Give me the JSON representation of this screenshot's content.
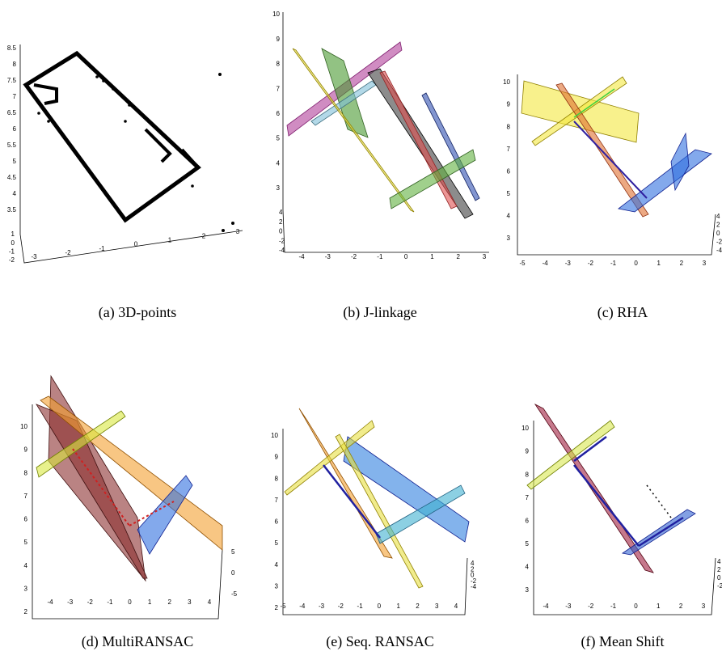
{
  "panels": [
    {
      "caption": "(a) 3D-points",
      "y_ticks": [
        "8.5",
        "8",
        "7.5",
        "7",
        "6.5",
        "6",
        "5.5",
        "5",
        "4.5",
        "4",
        "3.5"
      ],
      "z_ticks": [
        "1",
        "0",
        "-1",
        "-2"
      ],
      "x_ticks": [
        "-3",
        "-2",
        "-1",
        "0",
        "1",
        "2",
        "3"
      ]
    },
    {
      "caption": "(b) J-linkage",
      "y_ticks": [
        "10",
        "9",
        "8",
        "7",
        "6",
        "5",
        "4",
        "3"
      ],
      "z_ticks": [
        "4",
        "2",
        "0",
        "-2",
        "-4"
      ],
      "x_ticks": [
        "-4",
        "-3",
        "-2",
        "-1",
        "0",
        "1",
        "2",
        "3"
      ]
    },
    {
      "caption": "(c) RHA",
      "y_ticks": [
        "10",
        "9",
        "8",
        "7",
        "6",
        "5",
        "4",
        "3"
      ],
      "z_ticks": [
        "4",
        "2",
        "0",
        "-2",
        "-4"
      ],
      "x_ticks": [
        "-5",
        "-4",
        "-3",
        "-2",
        "-1",
        "0",
        "1",
        "2",
        "3"
      ]
    },
    {
      "caption": "(d) MultiRANSAC",
      "y_ticks": [
        "10",
        "9",
        "8",
        "7",
        "6",
        "5",
        "4",
        "3",
        "2"
      ],
      "z_ticks": [
        "5",
        "0",
        "-5"
      ],
      "x_ticks": [
        "-4",
        "-3",
        "-2",
        "-1",
        "0",
        "1",
        "2",
        "3",
        "4"
      ]
    },
    {
      "caption": "(e) Seq. RANSAC",
      "y_ticks": [
        "10",
        "9",
        "8",
        "7",
        "6",
        "5",
        "4",
        "3",
        "2"
      ],
      "z_ticks": [
        "4",
        "2",
        "0",
        "-2",
        "-4"
      ],
      "x_ticks": [
        "-5",
        "-4",
        "-3",
        "-2",
        "-1",
        "0",
        "1",
        "2",
        "3",
        "4"
      ]
    },
    {
      "caption": "(f) Mean Shift",
      "y_ticks": [
        "10",
        "9",
        "8",
        "7",
        "6",
        "5",
        "4",
        "3"
      ],
      "z_ticks": [
        "4",
        "2",
        "0",
        "-2"
      ],
      "x_ticks": [
        "-4",
        "-3",
        "-2",
        "-1",
        "0",
        "1",
        "2",
        "3"
      ]
    }
  ]
}
